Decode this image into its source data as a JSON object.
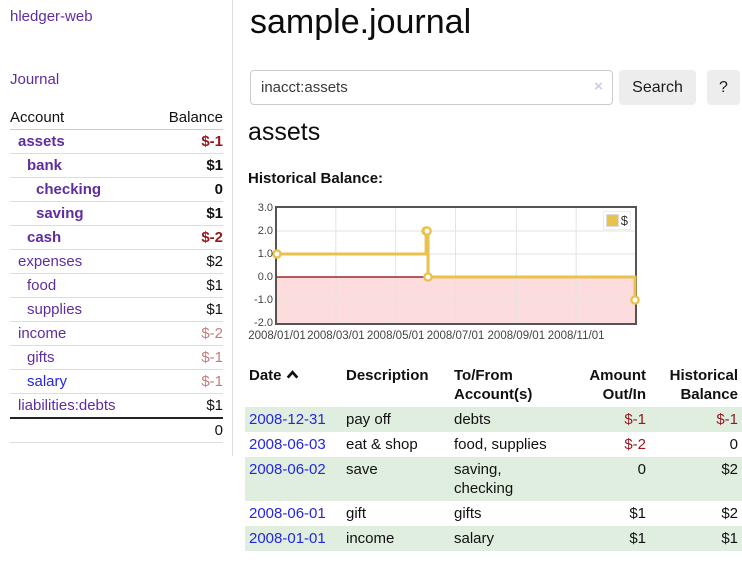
{
  "app": {
    "brand": "hledger-web",
    "nav_journal": "Journal"
  },
  "sidebar": {
    "header": {
      "account": "Account",
      "balance": "Balance"
    },
    "rows": [
      {
        "name": "assets",
        "balance": "$-1"
      },
      {
        "name": "bank",
        "balance": "$1"
      },
      {
        "name": "checking",
        "balance": "0"
      },
      {
        "name": "saving",
        "balance": "$1"
      },
      {
        "name": "cash",
        "balance": "$-2"
      },
      {
        "name": "expenses",
        "balance": "$2"
      },
      {
        "name": "food",
        "balance": "$1"
      },
      {
        "name": "supplies",
        "balance": "$1"
      },
      {
        "name": "income",
        "balance": "$-2"
      },
      {
        "name": "gifts",
        "balance": "$-1"
      },
      {
        "name": "salary",
        "balance": "$-1"
      },
      {
        "name": "liabilities:debts",
        "balance": "$1"
      }
    ],
    "total": "0"
  },
  "main": {
    "title": "sample.journal",
    "search": {
      "value": "inacct:assets",
      "clear_icon": "×",
      "button_label": "Search",
      "help_label": "?"
    },
    "account_title": "assets",
    "chart_label": "Historical Balance:"
  },
  "chart_data": {
    "type": "line",
    "steps": true,
    "title": "Historical Balance",
    "x_start": "2008-01-01",
    "x_end": "2008-12-31",
    "ylim": [
      -2,
      3
    ],
    "yticks": [
      3,
      2,
      1,
      0,
      -1,
      -2
    ],
    "xticks": [
      {
        "date": "2008-01-01",
        "label": "2008/01/01"
      },
      {
        "date": "2008-03-01",
        "label": "2008/03/01"
      },
      {
        "date": "2008-05-01",
        "label": "2008/05/01"
      },
      {
        "date": "2008-07-01",
        "label": "2008/07/01"
      },
      {
        "date": "2008-09-01",
        "label": "2008/09/01"
      },
      {
        "date": "2008-11-01",
        "label": "2008/11/01"
      }
    ],
    "series": [
      {
        "name": "$",
        "color": "#e8c24a",
        "points": [
          [
            "2008-01-01",
            1
          ],
          [
            "2008-06-01",
            2
          ],
          [
            "2008-06-02",
            2
          ],
          [
            "2008-06-03",
            0
          ],
          [
            "2008-12-31",
            -1
          ]
        ]
      }
    ],
    "grid": true,
    "legend_position": "top-right",
    "negative_region_color": "#fcdcdc",
    "zero_line_color": "#8b0000",
    "grid_color": "#e3e3e3"
  },
  "register": {
    "columns": [
      "Date",
      "Description",
      "To/From Account(s)",
      "Amount Out/In",
      "Historical Balance"
    ],
    "rows": [
      {
        "date": "2008-12-31",
        "description": "pay off",
        "accounts": "debts",
        "amount": "$-1",
        "balance": "$-1"
      },
      {
        "date": "2008-06-03",
        "description": "eat & shop",
        "accounts": "food, supplies",
        "amount": "$-2",
        "balance": "0"
      },
      {
        "date": "2008-06-02",
        "description": "save",
        "accounts": "saving, checking",
        "amount": "0",
        "balance": "$2"
      },
      {
        "date": "2008-06-01",
        "description": "gift",
        "accounts": "gifts",
        "amount": "$1",
        "balance": "$2"
      },
      {
        "date": "2008-01-01",
        "description": "income",
        "accounts": "salary",
        "amount": "$1",
        "balance": "$1"
      }
    ]
  }
}
